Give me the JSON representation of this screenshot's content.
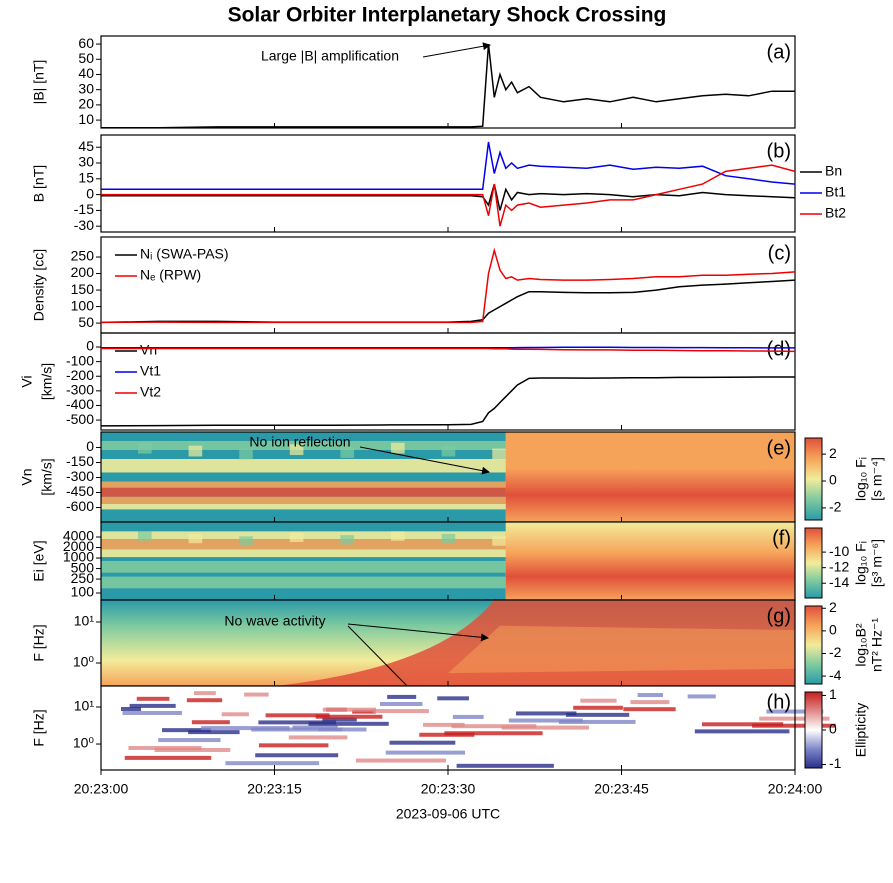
{
  "figure": {
    "title": "Solar Orbiter Interplanetary Shock Crossing",
    "xlabel": "2023-09-06 UTC",
    "xlim": [
      0,
      60
    ],
    "xticks": [
      {
        "value": 0,
        "label": "20:23:00"
      },
      {
        "value": 15,
        "label": "20:23:15"
      },
      {
        "value": 30,
        "label": "20:23:30"
      },
      {
        "value": 45,
        "label": "20:23:45"
      },
      {
        "value": 60,
        "label": "20:24:00"
      }
    ]
  },
  "chart_data": [
    {
      "type": "line",
      "label": "(a)",
      "ylabel": [
        "|B| [nT]"
      ],
      "annotation": "Large |B| amplification",
      "x": [
        0,
        5,
        10,
        15,
        20,
        25,
        30,
        32,
        33,
        33.5,
        34,
        34.5,
        35,
        35.5,
        36,
        37,
        38,
        40,
        42,
        44,
        46,
        48,
        50,
        52,
        54,
        56,
        58,
        60
      ],
      "ylim": [
        4.8,
        65.3
      ],
      "yticks": [
        10,
        20,
        30,
        40,
        50,
        60
      ],
      "series": [
        {
          "color": "#000000",
          "values": [
            5,
            5,
            5.5,
            5.5,
            5.5,
            5.5,
            5.5,
            5.5,
            6,
            60,
            25,
            40,
            30,
            35,
            28,
            32,
            25,
            22,
            24,
            22,
            25,
            22,
            24,
            26,
            27,
            26,
            29,
            29
          ]
        }
      ]
    },
    {
      "type": "line",
      "label": "(b)",
      "ylabel": [
        "B [nT]"
      ],
      "legend": "outside right",
      "x": [
        0,
        5,
        10,
        15,
        20,
        25,
        30,
        32,
        33,
        33.5,
        34,
        34.5,
        35,
        35.5,
        36,
        37,
        38,
        40,
        42,
        44,
        46,
        48,
        50,
        52,
        54,
        56,
        58,
        60
      ],
      "ylim": [
        -35.5,
        56.6
      ],
      "yticks": [
        45,
        30,
        15,
        0,
        -15,
        -30
      ],
      "series": [
        {
          "name": "Bn",
          "color": "#000000",
          "values": [
            -1,
            -1,
            -1,
            -1,
            -1,
            -1,
            -1,
            -1,
            -2,
            -10,
            10,
            -15,
            5,
            -5,
            2,
            0,
            1,
            0,
            1,
            0,
            -2,
            0,
            -1,
            2,
            0,
            -1,
            -2,
            -3
          ]
        },
        {
          "name": "Bt1",
          "color": "#0000ee",
          "values": [
            5,
            5,
            5,
            5,
            5,
            5,
            5,
            5,
            5,
            50,
            20,
            40,
            25,
            30,
            25,
            28,
            27,
            26,
            25,
            28,
            24,
            26,
            25,
            27,
            18,
            15,
            12,
            10
          ]
        },
        {
          "name": "Bt2",
          "color": "#ee0000",
          "values": [
            0,
            0,
            0,
            0,
            0,
            0,
            0,
            0,
            0,
            -20,
            10,
            -30,
            -10,
            -15,
            -10,
            -8,
            -12,
            -10,
            -8,
            -5,
            -5,
            0,
            5,
            10,
            22,
            25,
            28,
            22
          ]
        }
      ]
    },
    {
      "type": "line",
      "label": "(c)",
      "ylabel": [
        "Density [cc]"
      ],
      "legend": "upper left",
      "x": [
        0,
        5,
        10,
        15,
        20,
        25,
        30,
        32,
        33,
        33.5,
        34,
        34.5,
        35,
        35.5,
        36,
        37,
        38,
        40,
        42,
        44,
        46,
        48,
        50,
        52,
        54,
        56,
        58,
        60
      ],
      "ylim": [
        20,
        310.6
      ],
      "yticks": [
        50,
        100,
        150,
        200,
        250
      ],
      "series": [
        {
          "name": "Nᵢ (SWA-PAS)",
          "color": "#000000",
          "values": [
            52,
            55,
            55,
            53,
            53,
            53,
            53,
            55,
            60,
            80,
            90,
            100,
            110,
            120,
            130,
            145,
            145,
            143,
            142,
            142,
            143,
            150,
            160,
            165,
            168,
            172,
            176,
            180
          ]
        },
        {
          "name": "Nₑ (RPW)",
          "color": "#ee0000",
          "values": [
            52,
            53,
            52,
            52,
            52,
            52,
            52,
            52,
            55,
            200,
            270,
            210,
            185,
            190,
            180,
            185,
            182,
            180,
            180,
            182,
            185,
            190,
            190,
            195,
            195,
            198,
            200,
            205
          ]
        }
      ]
    },
    {
      "type": "line",
      "label": "(d)",
      "ylabel": [
        "Vi",
        "[km/s]"
      ],
      "legend": "upper left",
      "x": [
        0,
        5,
        10,
        15,
        20,
        25,
        30,
        32,
        33,
        33.5,
        34,
        34.5,
        35,
        35.5,
        36,
        37,
        38,
        40,
        42,
        44,
        46,
        48,
        50,
        52,
        54,
        56,
        58,
        60
      ],
      "ylim": [
        -568,
        96
      ],
      "yticks": [
        0,
        -100,
        -200,
        -300,
        -400,
        -500
      ],
      "series": [
        {
          "name": "Vn",
          "color": "#000000",
          "values": [
            -540,
            -538,
            -536,
            -535,
            -535,
            -533,
            -532,
            -530,
            -510,
            -450,
            -420,
            -380,
            -340,
            -300,
            -260,
            -215,
            -212,
            -212,
            -213,
            -212,
            -210,
            -210,
            -208,
            -208,
            -207,
            -206,
            -205,
            -205
          ]
        },
        {
          "name": "Vt1",
          "color": "#0000ee",
          "values": [
            -5,
            -5,
            -5,
            -5,
            -5,
            -5,
            -5,
            -5,
            -5,
            -5,
            -5,
            -5,
            -5,
            -5,
            -4,
            -3,
            -3,
            -2,
            -2,
            -2,
            -3,
            -3,
            -4,
            -4,
            -5,
            -5,
            -6,
            -6
          ]
        },
        {
          "name": "Vt2",
          "color": "#ee0000",
          "values": [
            -10,
            -10,
            -10,
            -10,
            -10,
            -10,
            -10,
            -10,
            -10,
            -10,
            -12,
            -12,
            -12,
            -14,
            -15,
            -15,
            -16,
            -18,
            -20,
            -20,
            -22,
            -22,
            -24,
            -25,
            -26,
            -27,
            -28,
            -30
          ]
        }
      ]
    },
    {
      "type": "spectrogram",
      "label": "(e)",
      "ylabel": [
        "Vn",
        "[km/s]"
      ],
      "annotation": "No ion reflection",
      "ylim": [
        -745,
        155
      ],
      "yticks": [
        0,
        -150,
        -300,
        -450,
        -600
      ],
      "log": false,
      "clim": [
        -2.9,
        3.2
      ],
      "cticks": [
        2,
        0,
        -2
      ],
      "clabel": [
        "log₁₀ Fᵢ",
        "[s m⁻⁴]"
      ],
      "colormap": [
        "#2b9aa8",
        "#7ecaa0",
        "#f2ec9a",
        "#f6a35a",
        "#e0503a"
      ]
    },
    {
      "type": "spectrogram",
      "label": "(f)",
      "ylabel": [
        "Ei [eV]"
      ],
      "ylim": [
        63,
        10750
      ],
      "yticks": [
        100,
        250,
        500,
        1000,
        2000,
        4000
      ],
      "log": true,
      "clim": [
        -15.9,
        -6.9
      ],
      "cticks": [
        -10,
        -12,
        -14
      ],
      "clabel": [
        "log₁₀ Fᵢ",
        "[s³ m⁻⁶]"
      ],
      "colormap": [
        "#2b9aa8",
        "#7ecaa0",
        "#f2ec9a",
        "#f6a35a",
        "#e0503a"
      ]
    },
    {
      "type": "spectrogram",
      "label": "(g)",
      "ylabel": [
        "F [Hz]"
      ],
      "annotation": "No wave activity",
      "ylim": [
        0.275,
        34.4
      ],
      "yticks": [
        {
          "value": 1,
          "label": "10⁰"
        },
        {
          "value": 10,
          "label": "10¹"
        }
      ],
      "log": true,
      "clim": [
        -4.7,
        2.2
      ],
      "cticks": [
        2,
        0,
        -2,
        -4
      ],
      "clabel": [
        "log₁₀B²",
        "nT² Hz⁻¹"
      ],
      "colormap": [
        "#2b9aa8",
        "#7ecaa0",
        "#f2ec9a",
        "#f6a35a",
        "#e0503a"
      ]
    },
    {
      "type": "spectrogram",
      "label": "(h)",
      "ylabel": [
        "F [Hz]"
      ],
      "ylim": [
        0.199,
        36.9
      ],
      "yticks": [
        {
          "value": 1,
          "label": "10⁰"
        },
        {
          "value": 10,
          "label": "10¹"
        }
      ],
      "log": true,
      "clim": [
        -1.1,
        1.1
      ],
      "cticks": [
        1,
        0,
        -1
      ],
      "clabel": [
        "Ellipticity"
      ],
      "colormap": [
        "#2a2f8a",
        "#7f86c8",
        "#ffffff",
        "#e08a8a",
        "#c81e1e"
      ]
    }
  ]
}
